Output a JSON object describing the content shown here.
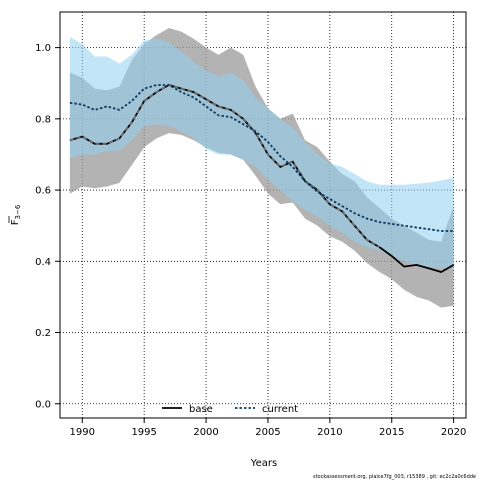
{
  "chart_data": {
    "type": "line",
    "xlabel": "Years",
    "ylabel": "F̅ 3–6",
    "ylabel_main": "F",
    "ylabel_sub": "3−6",
    "xlim": [
      1988.2,
      2021.0
    ],
    "ylim": [
      -0.04,
      1.1
    ],
    "xticks": [
      "1990",
      "1995",
      "2000",
      "2005",
      "2010",
      "2015",
      "2020"
    ],
    "yticks": [
      "0.0",
      "0.2",
      "0.4",
      "0.6",
      "0.8",
      "1.0"
    ],
    "grid": true,
    "legend_position": "bottom-center",
    "x": [
      1989,
      1990,
      1991,
      1992,
      1993,
      1994,
      1995,
      1996,
      1997,
      1998,
      1999,
      2000,
      2001,
      2002,
      2003,
      2004,
      2005,
      2006,
      2007,
      2008,
      2009,
      2010,
      2011,
      2012,
      2013,
      2014,
      2015,
      2016,
      2017,
      2018,
      2019,
      2020
    ],
    "series": [
      {
        "name": "base",
        "color": "#000000",
        "style": "solid-dashed",
        "values": [
          0.74,
          0.75,
          0.73,
          0.73,
          0.745,
          0.79,
          0.85,
          0.875,
          0.895,
          0.885,
          0.875,
          0.855,
          0.835,
          0.825,
          0.8,
          0.76,
          0.7,
          0.665,
          0.68,
          0.625,
          0.6,
          0.56,
          0.54,
          0.5,
          0.46,
          0.44,
          0.415,
          0.385,
          0.39,
          0.38,
          0.37,
          0.39
        ],
        "band_lower": [
          0.59,
          0.61,
          0.605,
          0.61,
          0.62,
          0.67,
          0.72,
          0.745,
          0.76,
          0.755,
          0.74,
          0.72,
          0.705,
          0.7,
          0.685,
          0.64,
          0.59,
          0.56,
          0.565,
          0.52,
          0.5,
          0.47,
          0.455,
          0.43,
          0.395,
          0.37,
          0.35,
          0.32,
          0.3,
          0.29,
          0.27,
          0.275
        ],
        "band_upper": [
          0.93,
          0.915,
          0.885,
          0.88,
          0.89,
          0.965,
          1.01,
          1.035,
          1.055,
          1.045,
          1.025,
          1.0,
          0.98,
          1.0,
          0.98,
          0.89,
          0.83,
          0.8,
          0.815,
          0.74,
          0.72,
          0.68,
          0.645,
          0.625,
          0.58,
          0.55,
          0.52,
          0.5,
          0.48,
          0.46,
          0.455,
          0.555
        ],
        "band_color": "#9a9a9a"
      },
      {
        "name": "current",
        "color": "#0b3a66",
        "style": "dotted",
        "values": [
          0.845,
          0.84,
          0.825,
          0.835,
          0.825,
          0.85,
          0.885,
          0.895,
          0.895,
          0.875,
          0.86,
          0.835,
          0.81,
          0.805,
          0.785,
          0.765,
          0.735,
          0.695,
          0.665,
          0.625,
          0.595,
          0.575,
          0.555,
          0.535,
          0.52,
          0.51,
          0.505,
          0.5,
          0.495,
          0.49,
          0.485,
          0.485
        ],
        "band_lower": [
          0.69,
          0.7,
          0.7,
          0.71,
          0.71,
          0.74,
          0.78,
          0.785,
          0.78,
          0.765,
          0.745,
          0.715,
          0.7,
          0.7,
          0.685,
          0.665,
          0.63,
          0.6,
          0.57,
          0.545,
          0.525,
          0.5,
          0.48,
          0.455,
          0.44,
          0.43,
          0.415,
          0.4,
          0.39,
          0.385,
          0.38,
          0.38
        ],
        "band_upper": [
          1.03,
          1.01,
          0.975,
          0.975,
          0.955,
          0.98,
          1.02,
          1.025,
          1.015,
          0.99,
          0.96,
          0.935,
          0.92,
          0.93,
          0.91,
          0.86,
          0.83,
          0.8,
          0.775,
          0.735,
          0.7,
          0.675,
          0.665,
          0.645,
          0.625,
          0.615,
          0.615,
          0.615,
          0.618,
          0.621,
          0.627,
          0.635
        ],
        "band_color": "#8fd0f0"
      }
    ],
    "footer": "stockassessment.org, plaice7fg_003, r15389 , git: ec2c2a0c6dde"
  }
}
